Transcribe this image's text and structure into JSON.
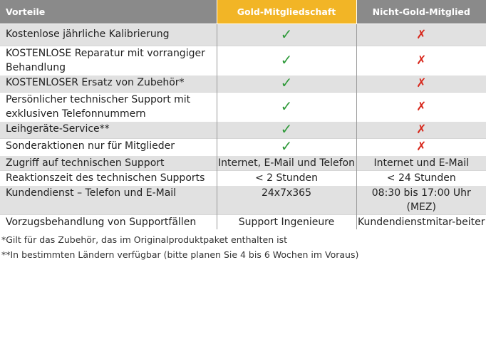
{
  "header": {
    "col_feature": "Vorteile",
    "col_gold": "Gold-Mitgliedschaft",
    "col_nongold": "Nicht-Gold-Mitglied"
  },
  "colors": {
    "gold_header": "#f2b526",
    "gray_header": "#8a8a8a",
    "row_shade": "#e1e1e1",
    "check": "#2f9a3a",
    "cross": "#d8281c"
  },
  "rows": [
    {
      "feature": "Kostenlose jährliche Kalibrierung",
      "gold_icon": "check-icon",
      "nongold_icon": "cross-icon"
    },
    {
      "feature": "KOSTENLOSE Reparatur mit vorrangiger Behandlung",
      "gold_icon": "check-icon",
      "nongold_icon": "cross-icon"
    },
    {
      "feature": "KOSTENLOSER Ersatz von Zubehör*",
      "gold_icon": "check-icon",
      "nongold_icon": "cross-icon"
    },
    {
      "feature": "Persönlicher technischer Support mit exklusiven Telefonnummern",
      "gold_icon": "check-icon",
      "nongold_icon": "cross-icon"
    },
    {
      "feature": "Leihgeräte-Service**",
      "gold_icon": "check-icon",
      "nongold_icon": "cross-icon"
    },
    {
      "feature": "Sonderaktionen nur für Mitglieder",
      "gold_icon": "check-icon",
      "nongold_icon": "cross-icon"
    },
    {
      "feature": "Zugriff auf technischen Support",
      "gold": "Internet, E-Mail und Telefon",
      "nongold": "Internet und E-Mail"
    },
    {
      "feature": "Reaktionszeit des technischen Supports",
      "gold": "< 2 Stunden",
      "nongold": "< 24 Stunden"
    },
    {
      "feature": "Kundendienst – Telefon und E-Mail",
      "gold": "24x7x365",
      "nongold": "08:30 bis 17:00 Uhr (MEZ)"
    },
    {
      "feature": "Vorzugsbehandlung von Supportfällen",
      "gold": "Support Ingenieure",
      "nongold": "Kundendienstmitar-beiter"
    }
  ],
  "symbols": {
    "check": "✓",
    "cross": "✗"
  },
  "footnotes": [
    "*Gilt für das Zubehör, das im Originalproduktpaket enthalten ist",
    "**In bestimmten Ländern verfügbar (bitte planen Sie 4 bis 6 Wochen im Voraus)"
  ]
}
